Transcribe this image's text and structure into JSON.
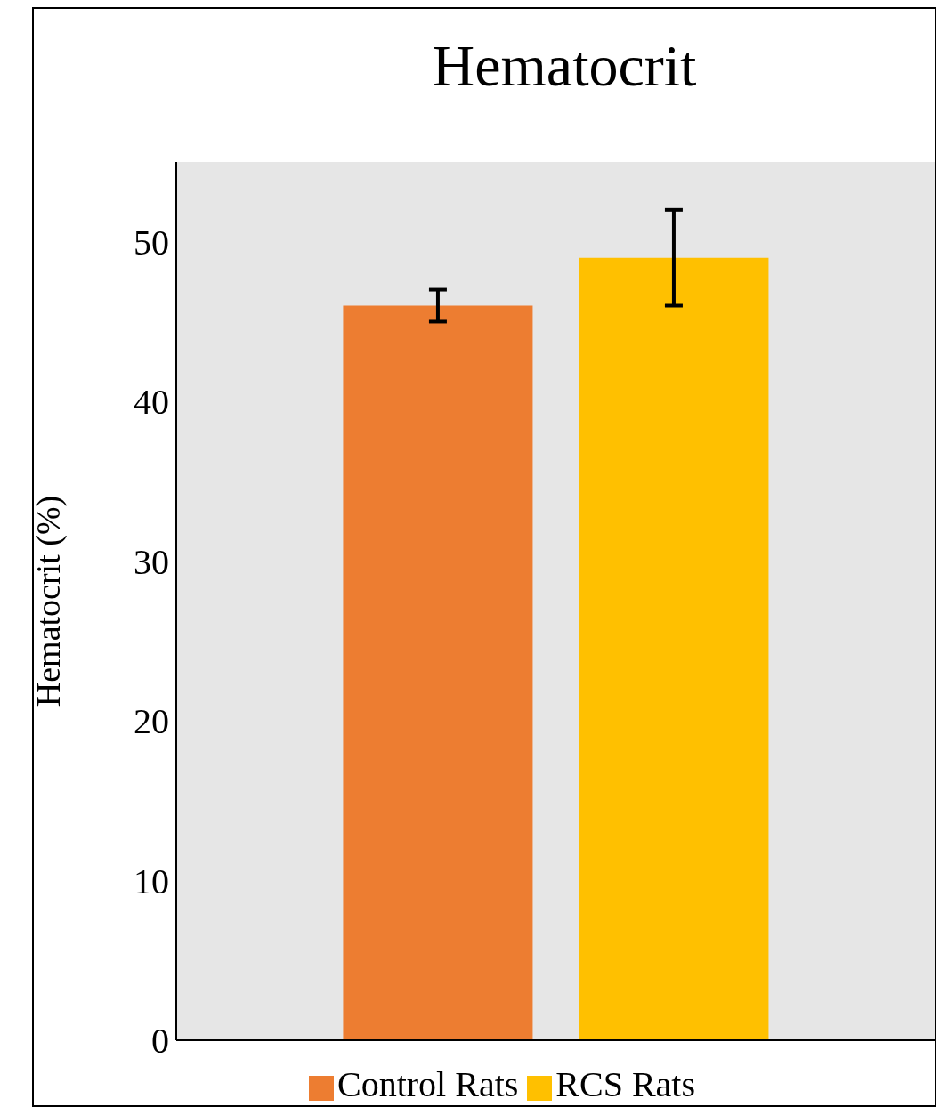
{
  "chart_data": {
    "type": "bar",
    "title": "Hematocrit",
    "ylabel": "Hematocrit (%)",
    "categories": [
      null
    ],
    "series": [
      {
        "name": "Control Rats",
        "color": "#ed7d31",
        "values": [
          46
        ],
        "errors": [
          1
        ]
      },
      {
        "name": "RCS Rats",
        "color": "#ffc000",
        "values": [
          49
        ],
        "errors": [
          3
        ]
      }
    ],
    "ylim": [
      0,
      55
    ],
    "yticks": [
      0,
      10,
      20,
      30,
      40,
      50
    ],
    "grid": false,
    "legend": "bottom"
  }
}
